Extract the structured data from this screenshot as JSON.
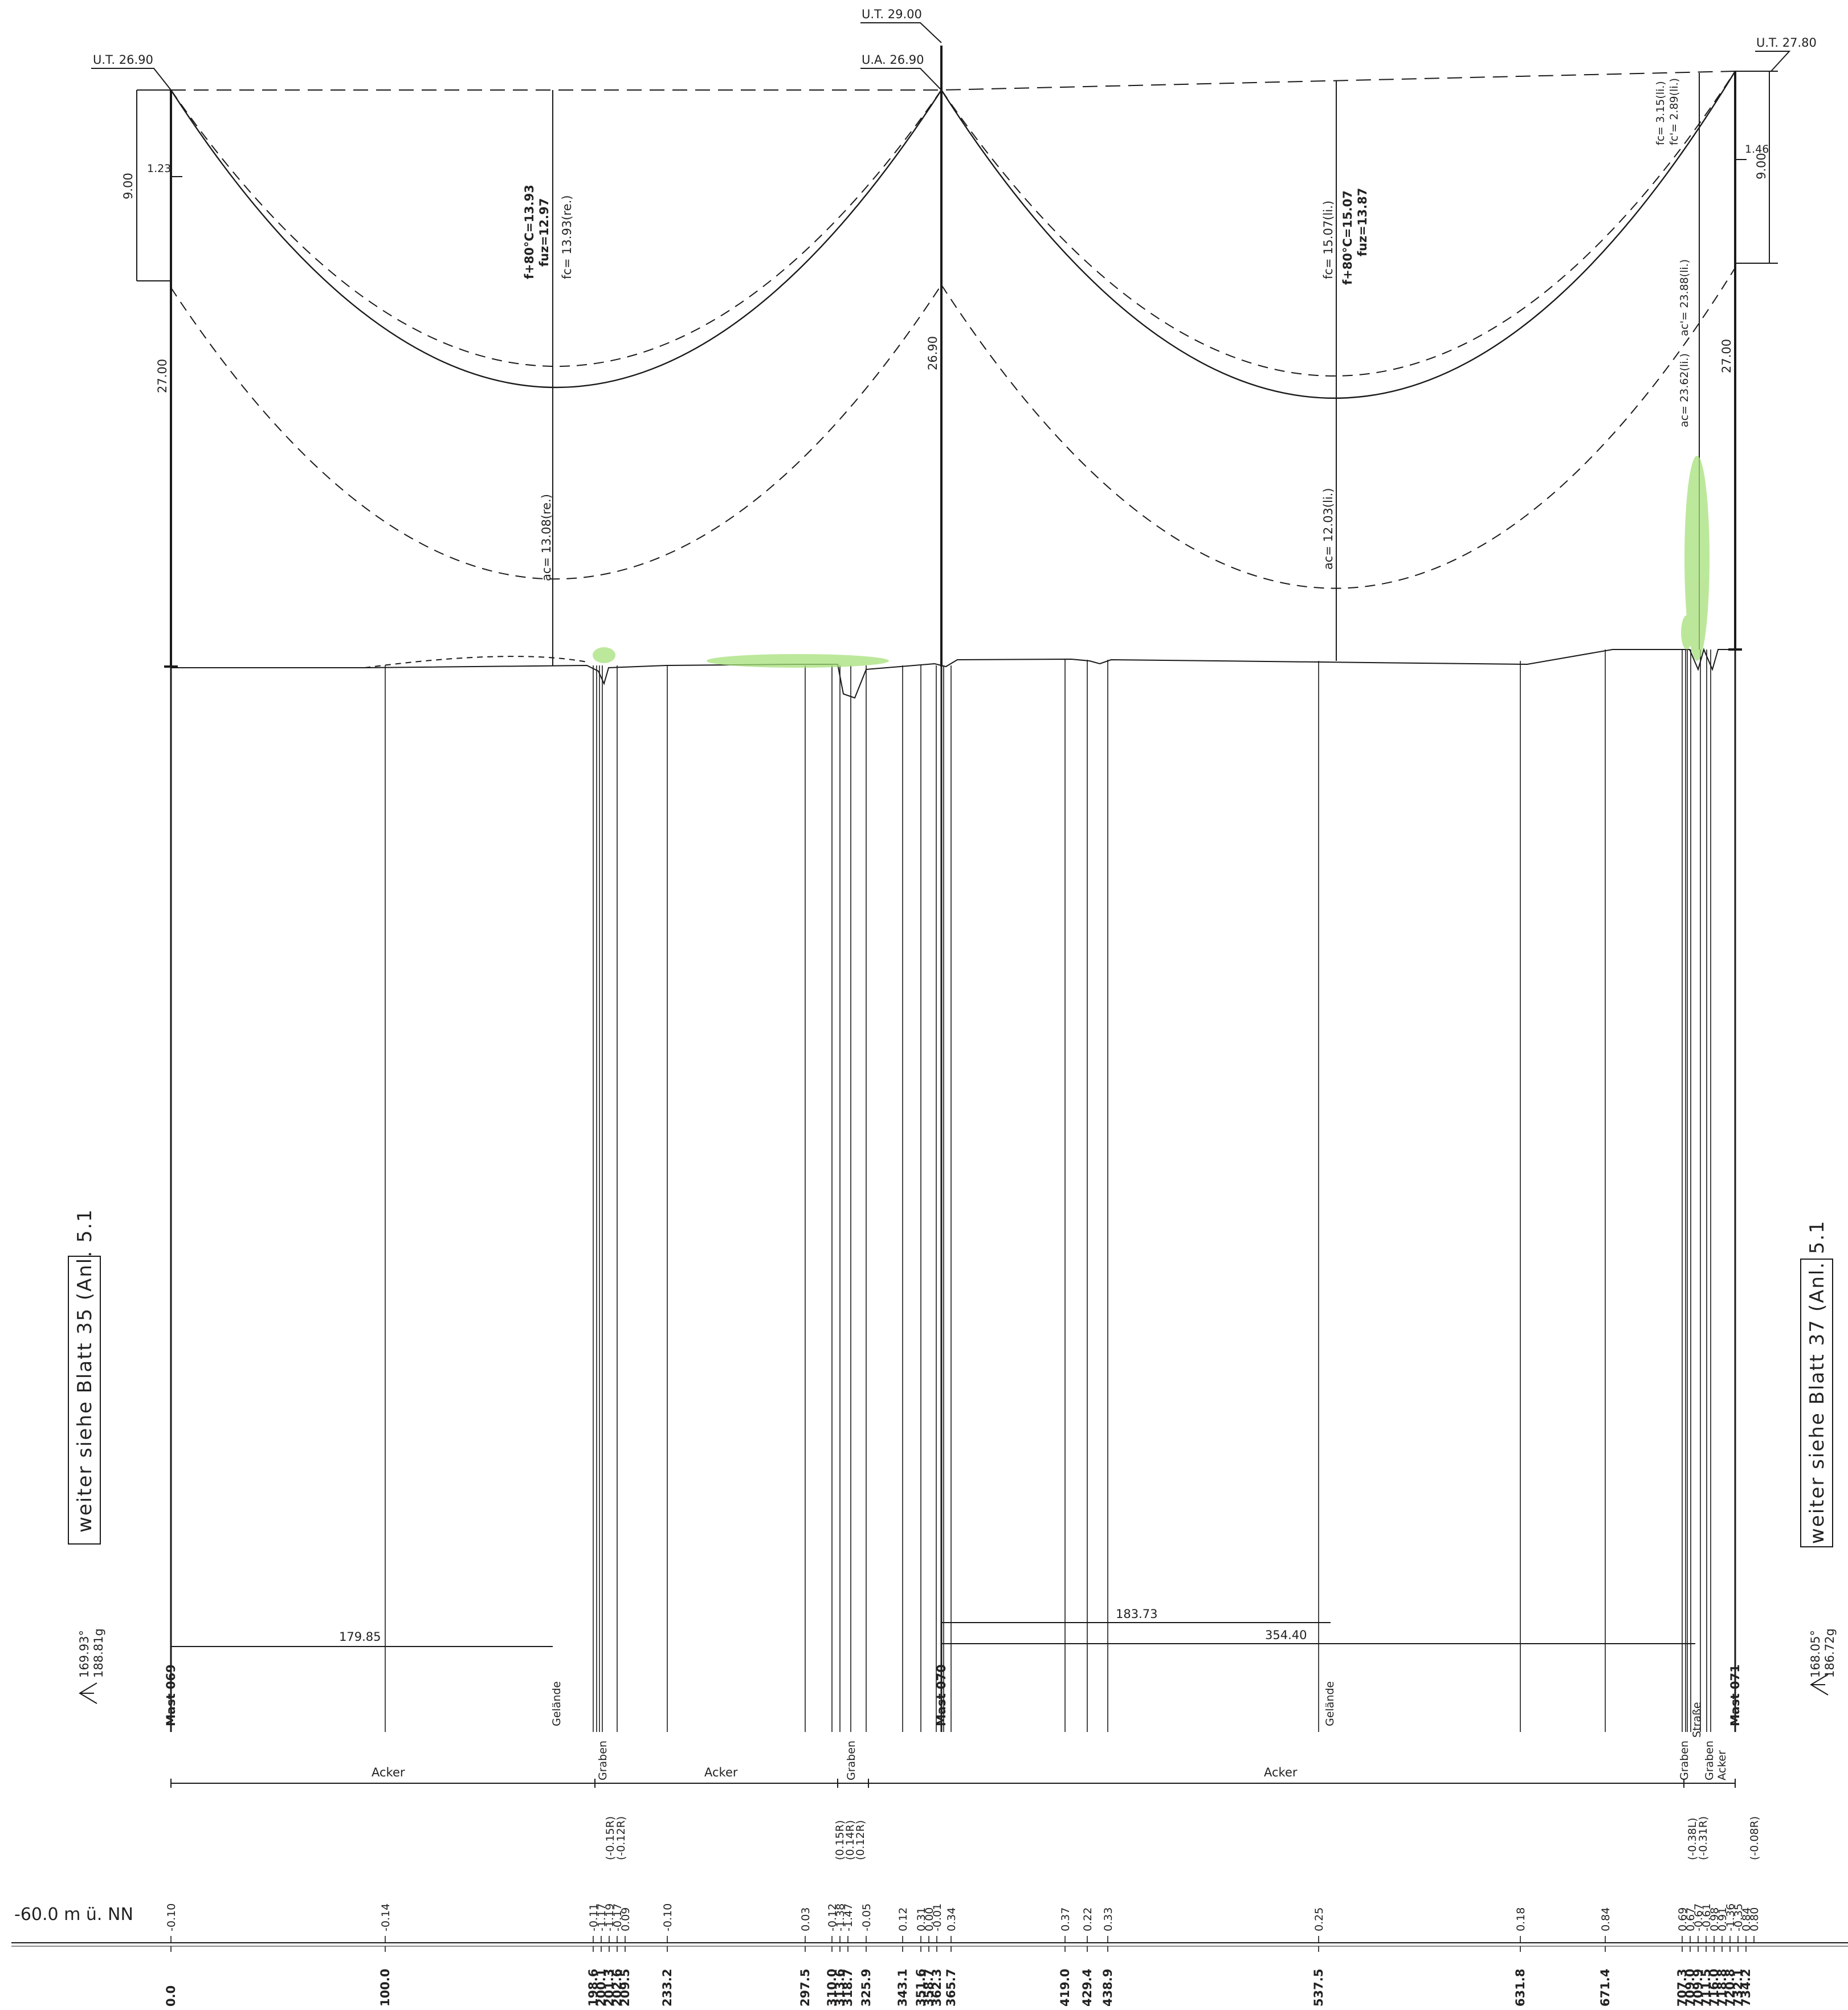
{
  "levels": {
    "ut_left": "U.T. 26.90",
    "ut_mid": "U.T. 29.00",
    "ua_mid": "U.A. 26.90",
    "ut_right": "U.T. 27.80"
  },
  "dimensions": {
    "left_9": "9.00",
    "left_123": "1.23",
    "left_27": "27.00",
    "mid_2690": "26.90",
    "right_146": "1.46",
    "right_9": "9.00",
    "right_27": "27.00"
  },
  "sag": {
    "span1_f80": "f+80°C=13.93",
    "span1_fuz": "fuz=12.97",
    "span1_fc": "fc= 13.93(re.)",
    "span1_ac": "ac= 13.08(re.)",
    "span2_fc": "fc= 15.07(li.)",
    "span2_f80": "f+80°C=15.07",
    "span2_fuz": "fuz=13.87",
    "span2_ac": "ac= 12.03(li.)",
    "right_fc1": "fc= 3.15(li.)",
    "right_fc2": "fc'= 2.89(li.)",
    "right_ac1": "ac= 23.62(li.)",
    "right_ac2": "ac'= 23.88(li.)"
  },
  "distances": {
    "d17985": "179.85",
    "d18373": "183.73",
    "d35440": "354.40"
  },
  "masts": {
    "m069": "Mast 069",
    "m070": "Mast 070",
    "m071": "Mast 071"
  },
  "features": {
    "gelaende1": "Gelände",
    "gelaende2": "Gelände",
    "graben1": "Graben",
    "graben2": "Graben",
    "graben3": "Graben",
    "strasse": "Straße",
    "graben4": "Graben",
    "acker_v": "Acker"
  },
  "land_use": {
    "acker1": "Acker",
    "acker2": "Acker",
    "acker3": "Acker"
  },
  "angles": {
    "left_1": "169.93°",
    "left_2": "188.81g",
    "right_1": "168.05°",
    "right_2": "186.72g"
  },
  "sidebox": {
    "left": "weiter siehe Blatt 35 (Anl. 5.1",
    "right": "weiter siehe Blatt 37 (Anl. 5.1"
  },
  "offsets": {
    "o1": "(-0.15R)",
    "o2": "(-0.12R)",
    "o3": "(0.15R)",
    "o4": "(0.14R)",
    "o5": "(0.12R)",
    "o6": "(-0.38L)",
    "o7": "(-0.31R)",
    "o8": "(-0.08R)"
  },
  "datum": "-60.0 m ü. NN",
  "elevations": [
    {
      "id": "e0",
      "label": "-0.10"
    },
    {
      "id": "e1",
      "label": "-0.14"
    },
    {
      "id": "e2",
      "label": "-0.11"
    },
    {
      "id": "e3",
      "label": "-1.17"
    },
    {
      "id": "e4",
      "label": "-1.19"
    },
    {
      "id": "e5",
      "label": "-0.17"
    },
    {
      "id": "e6",
      "label": "0.09"
    },
    {
      "id": "e7",
      "label": "-0.10"
    },
    {
      "id": "e8",
      "label": "0.03"
    },
    {
      "id": "e9",
      "label": "-0.12"
    },
    {
      "id": "e10",
      "label": "-1.38"
    },
    {
      "id": "e11",
      "label": "-1.47"
    },
    {
      "id": "e12",
      "label": "-0.05"
    },
    {
      "id": "e13",
      "label": "0.12"
    },
    {
      "id": "e14",
      "label": "0.31"
    },
    {
      "id": "e15",
      "label": "0.00"
    },
    {
      "id": "e16",
      "label": "-0.01"
    },
    {
      "id": "e17",
      "label": "0.34"
    },
    {
      "id": "e18",
      "label": "0.37"
    },
    {
      "id": "e19",
      "label": "0.22"
    },
    {
      "id": "e20",
      "label": "0.33"
    },
    {
      "id": "e21",
      "label": "0.25"
    },
    {
      "id": "e22",
      "label": "0.18"
    },
    {
      "id": "e23",
      "label": "0.84"
    },
    {
      "id": "e24",
      "label": "0.69"
    },
    {
      "id": "e25",
      "label": "0.67"
    },
    {
      "id": "e26",
      "label": "-0.67"
    },
    {
      "id": "e27",
      "label": "-0.61"
    },
    {
      "id": "e28",
      "label": "0.98"
    },
    {
      "id": "e29",
      "label": "0.91"
    },
    {
      "id": "e30",
      "label": "-1.36"
    },
    {
      "id": "e31",
      "label": "-0.35"
    },
    {
      "id": "e32",
      "label": "0.84"
    },
    {
      "id": "e33",
      "label": "0.80"
    }
  ],
  "stations": [
    {
      "id": "s0",
      "label": "0.0"
    },
    {
      "id": "s1",
      "label": "100.0"
    },
    {
      "id": "s2",
      "label": "198.6"
    },
    {
      "id": "s3",
      "label": "200.1"
    },
    {
      "id": "s4",
      "label": "201.3"
    },
    {
      "id": "s5",
      "label": "202.6"
    },
    {
      "id": "s6",
      "label": "209.5"
    },
    {
      "id": "s7",
      "label": "233.2"
    },
    {
      "id": "s8",
      "label": "297.5"
    },
    {
      "id": "s9",
      "label": "310.0"
    },
    {
      "id": "s10",
      "label": "313.6"
    },
    {
      "id": "s11",
      "label": "318.7"
    },
    {
      "id": "s12",
      "label": "325.9"
    },
    {
      "id": "s13",
      "label": "343.1"
    },
    {
      "id": "s14",
      "label": "351.6"
    },
    {
      "id": "s15",
      "label": "358.7"
    },
    {
      "id": "s16",
      "label": "362.3"
    },
    {
      "id": "s17",
      "label": "365.7"
    },
    {
      "id": "s18",
      "label": "419.0"
    },
    {
      "id": "s19",
      "label": "429.4"
    },
    {
      "id": "s20",
      "label": "438.9"
    },
    {
      "id": "s21",
      "label": "537.5"
    },
    {
      "id": "s22",
      "label": "631.8"
    },
    {
      "id": "s23",
      "label": "671.4"
    },
    {
      "id": "s24",
      "label": "707.3"
    },
    {
      "id": "s25",
      "label": "709.0"
    },
    {
      "id": "s26",
      "label": "709.9"
    },
    {
      "id": "s27",
      "label": "711.5"
    },
    {
      "id": "s28",
      "label": "716.0"
    },
    {
      "id": "s29",
      "label": "718.8"
    },
    {
      "id": "s30",
      "label": "720.8"
    },
    {
      "id": "s31",
      "label": "732.1"
    },
    {
      "id": "s32",
      "label": "734.2"
    }
  ]
}
